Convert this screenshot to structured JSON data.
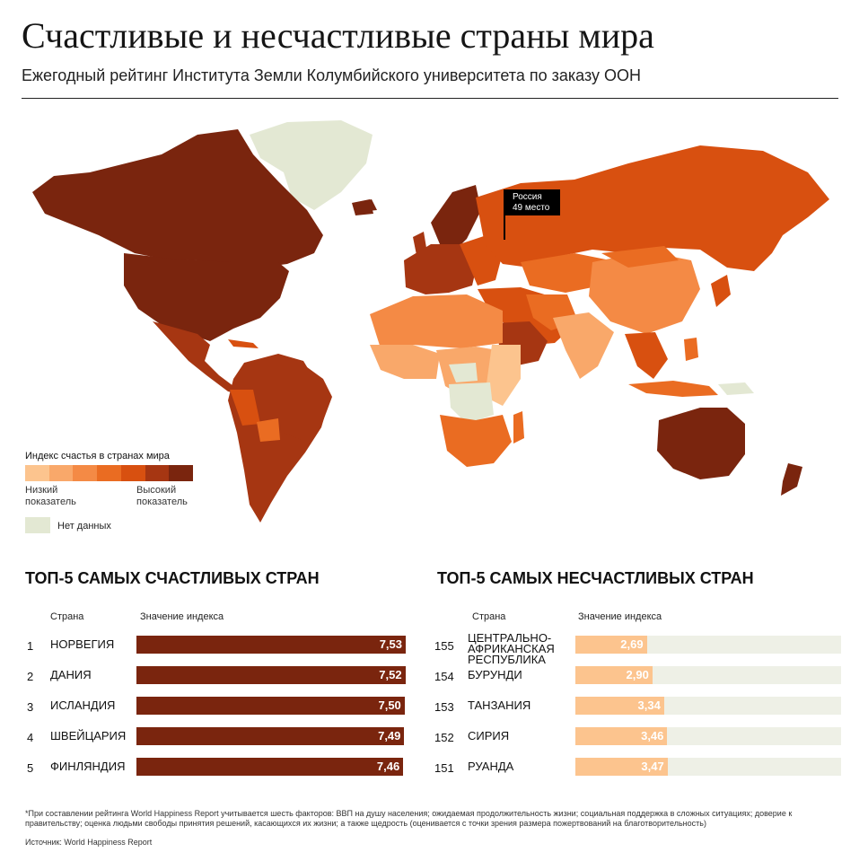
{
  "header": {
    "title": "Счастливые и несчастливые страны мира",
    "subtitle": "Ежегодный рейтинг Института Земли Колумбийского университета по заказу ООН"
  },
  "map": {
    "callout": {
      "country": "Россия",
      "rank": "49 место"
    },
    "colors": {
      "no_data": "#e3e8d3",
      "scale": [
        "#fcc48e",
        "#f9a86a",
        "#f48a45",
        "#ea6c22",
        "#d85010",
        "#a63612",
        "#7a250e"
      ]
    }
  },
  "legend": {
    "title": "Индекс счастья в странах мира",
    "low_label": "Низкий показатель",
    "high_label": "Высокий показатель",
    "no_data_label": "Нет данных"
  },
  "happiest": {
    "title": "ТОП-5 САМЫХ СЧАСТЛИВЫХ СТРАН",
    "col_country": "Страна",
    "col_value": "Значение индекса",
    "bar_color": "#7a250e",
    "rows": [
      {
        "rank": "1",
        "country": "Норвегия",
        "value": "7,53",
        "level": 7.53
      },
      {
        "rank": "2",
        "country": "Дания",
        "value": "7,52",
        "level": 7.52
      },
      {
        "rank": "3",
        "country": "Исландия",
        "value": "7,50",
        "level": 7.5
      },
      {
        "rank": "4",
        "country": "Швейцария",
        "value": "7,49",
        "level": 7.49
      },
      {
        "rank": "5",
        "country": "Финляндия",
        "value": "7,46",
        "level": 7.46
      }
    ]
  },
  "unhappiest": {
    "title": "ТОП-5 САМЫХ НЕСЧАСТЛИВЫХ СТРАН",
    "col_country": "Страна",
    "col_value": "Значение индекса",
    "bar_color": "#fcc48e",
    "track_color": "#eef0e6",
    "rows": [
      {
        "rank": "155",
        "country": "Центрально-Африканская Республика",
        "value": "2,69",
        "level": 2.69
      },
      {
        "rank": "154",
        "country": "Бурунди",
        "value": "2,90",
        "level": 2.9
      },
      {
        "rank": "153",
        "country": "Танзания",
        "value": "3,34",
        "level": 3.34
      },
      {
        "rank": "152",
        "country": "Сирия",
        "value": "3,46",
        "level": 3.46
      },
      {
        "rank": "151",
        "country": "Руанда",
        "value": "3,47",
        "level": 3.47
      }
    ]
  },
  "footer": {
    "note": "*При составлении рейтинга World Happiness Report учитывается шесть факторов: ВВП на душу населения; ожидаемая продолжительность жизни; социальная поддержка в сложных ситуациях; доверие к правительству; оценка людьми свободы принятия решений, касающихся их жизни; а также щедрость (оценивается с точки зрения размера пожертвований на благотворительность)",
    "source": "Источник: World Happiness Report"
  }
}
